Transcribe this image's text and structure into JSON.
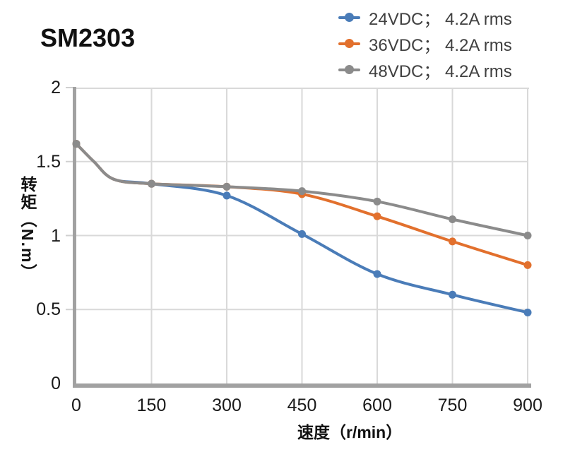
{
  "page": {
    "title": "SM2303"
  },
  "chart_data": {
    "type": "line",
    "title": "SM2303",
    "xlabel": "速度（r/min）",
    "ylabel": "转矩（N.m）",
    "xlim": [
      0,
      900
    ],
    "ylim": [
      0,
      2
    ],
    "x_ticks": [
      0,
      150,
      300,
      450,
      600,
      750,
      900
    ],
    "y_ticks": [
      "2",
      "1.5",
      "1",
      "0.5",
      "0"
    ],
    "grid": true,
    "legend_position": "top-right",
    "x": [
      0,
      150,
      300,
      450,
      600,
      750,
      900
    ],
    "series": [
      {
        "key": "24vdc",
        "name": "24VDC； 4.2A rms",
        "color": "#4A7CB8",
        "values": [
          1.62,
          1.35,
          1.27,
          1.01,
          0.74,
          0.6,
          0.48
        ]
      },
      {
        "key": "36vdc",
        "name": "36VDC； 4.2A rms",
        "color": "#E2702D",
        "values": [
          1.62,
          1.35,
          1.33,
          1.28,
          1.13,
          0.96,
          0.8
        ]
      },
      {
        "key": "48vdc",
        "name": "48VDC； 4.2A rms",
        "color": "#8B8B8B",
        "values": [
          1.62,
          1.35,
          1.33,
          1.3,
          1.23,
          1.11,
          1.0
        ]
      }
    ],
    "smoothing_lead_in": [
      [
        35,
        1.5
      ],
      [
        75,
        1.38
      ]
    ],
    "colors": {
      "axis": "#A1A1A1",
      "grid": "#D9D9D9",
      "y_tick_mark": "#D0D0D0",
      "tick_text": "#1A1A1A",
      "legend_text": "#404040",
      "title_text": "#111111"
    }
  }
}
